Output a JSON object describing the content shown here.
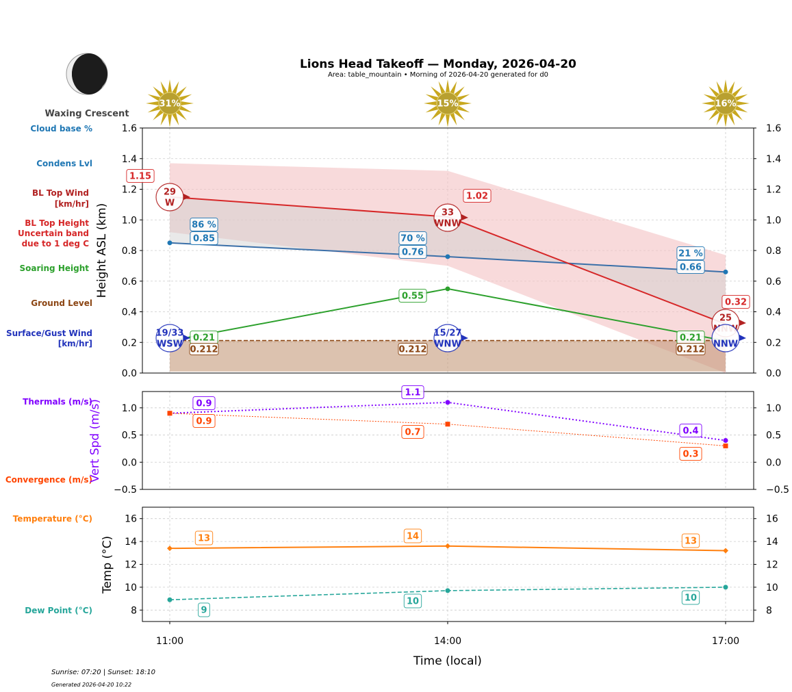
{
  "title": "Lions Head Takeoff — Monday, 2026-04-20",
  "subtitle": "Area: table_mountain • Morning of 2026-04-20 generated for d0",
  "moon_phase": "Waxing Crescent",
  "footer": {
    "sun": "Sunrise: 07:20 | Sunset: 18:10",
    "generated": "Generated 2026-04-20 10:22"
  },
  "side_labels": {
    "cloud_base": "Cloud base %",
    "condens": "Condens Lvl",
    "bl_wind_1": "BL Top Wind",
    "bl_wind_2": "[km/hr]",
    "bl_height_1": "BL Top Height",
    "bl_height_2": "Uncertain band",
    "bl_height_3": "due to 1 deg C",
    "soaring": "Soaring Height",
    "ground": "Ground Level",
    "surface_1": "Surface/Gust Wind",
    "surface_2": "[km/hr]",
    "thermals": "Thermals (m/s)",
    "convergence": "Convergence (m/s)",
    "temperature": "Temperature (°C)",
    "dew": "Dew Point (°C)"
  },
  "colors": {
    "cloud": "#1f77b4",
    "bl": "#d62728",
    "band": "#f4c2c3",
    "soaring": "#2ca02c",
    "ground": "#8b4513",
    "surface": "#2233bb",
    "thermal": "#8000ff",
    "conv": "#ff4500",
    "temp": "#ff7f0e",
    "dew": "#26a69a",
    "sun": "#c8a820"
  },
  "chart_data": [
    {
      "type": "line",
      "ylabel": "Height ASL (km)",
      "ylim": [
        0,
        1.6
      ],
      "yticks": [
        "0.0",
        "0.2",
        "0.4",
        "0.6",
        "0.8",
        "1.0",
        "1.2",
        "1.4",
        "1.6"
      ],
      "categories": [
        "11:00",
        "14:00",
        "17:00"
      ],
      "sun_cover_pct": [
        "31%",
        "15%",
        "16%"
      ],
      "cloud_pct": [
        "86 %",
        "70 %",
        "21 %"
      ],
      "condens_lvl": [
        0.85,
        0.76,
        0.66
      ],
      "bl_top": [
        1.15,
        1.02,
        0.32
      ],
      "bl_band_upper": [
        1.37,
        1.32,
        0.77
      ],
      "bl_band_lower": [
        0.92,
        0.7,
        0.0
      ],
      "soaring": [
        0.21,
        0.55,
        0.21
      ],
      "ground": [
        0.212,
        0.212,
        0.212
      ],
      "bl_wind": [
        {
          "speed": "29",
          "dir": "W"
        },
        {
          "speed": "33",
          "dir": "WNW"
        },
        {
          "speed": "25",
          "dir": "NNW"
        }
      ],
      "surface_wind": [
        {
          "speed": "19/33",
          "dir": "WSW"
        },
        {
          "speed": "15/27",
          "dir": "WNW"
        },
        {
          "speed": "",
          "dir": "NNW"
        }
      ]
    },
    {
      "type": "line",
      "ylabel": "Vert Spd (m/s)",
      "ylim": [
        -0.5,
        1.3
      ],
      "yticks": [
        "−0.5",
        "0.0",
        "0.5",
        "1.0"
      ],
      "thermals": [
        0.9,
        1.1,
        0.4
      ],
      "convergence": [
        0.9,
        0.7,
        0.3
      ]
    },
    {
      "type": "line",
      "ylabel": "Temp (°C)",
      "xlabel": "Time (local)",
      "ylim": [
        7,
        17
      ],
      "yticks": [
        "8",
        "10",
        "12",
        "14",
        "16"
      ],
      "temperature": [
        13,
        14,
        13
      ],
      "dew_point": [
        9,
        10,
        10
      ],
      "x_ticks": [
        "11:00",
        "14:00",
        "17:00"
      ]
    }
  ]
}
